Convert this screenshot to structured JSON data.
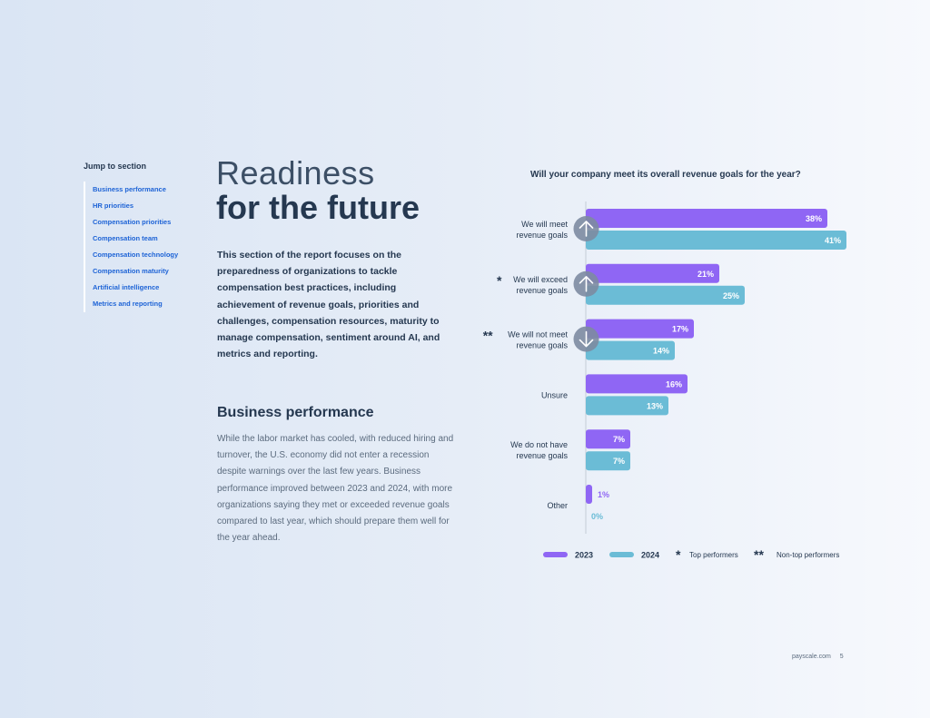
{
  "nav": {
    "title": "Jump to section",
    "items": [
      "Business performance",
      "HR priorities",
      "Compensation priorities",
      "Compensation team",
      "Compensation technology",
      "Compensation maturity",
      "Artificial intelligence",
      "Metrics and reporting"
    ]
  },
  "header": {
    "title_light": "Readiness",
    "title_bold": "for the future"
  },
  "intro": "This section of the report focuses on the preparedness of organizations to tackle compensation best practices, including achievement of revenue goals, priorities and challenges, compensation resources, maturity to manage compensation, sentiment around AI, and metrics and reporting.",
  "section": {
    "heading": "Business performance",
    "body": "While the labor market has cooled, with reduced hiring and turnover, the U.S. economy did not enter a recession despite warnings over the last few years. Business performance improved between 2023 and 2024, with more organizations saying they met or exceeded revenue goals compared to last year, which should prepare them well for the year ahead."
  },
  "chart_data": {
    "type": "bar",
    "orientation": "horizontal",
    "title": "Will your company meet its overall revenue goals for the year?",
    "categories": [
      [
        "We will meet",
        "revenue goals"
      ],
      [
        "We will exceed",
        "revenue goals"
      ],
      [
        "We will not meet",
        "revenue goals"
      ],
      [
        "Unsure"
      ],
      [
        "We do not have",
        "revenue goals"
      ],
      [
        "Other"
      ]
    ],
    "category_marks": [
      "",
      "*",
      "**",
      "",
      "",
      ""
    ],
    "trend_icons": [
      "arrow-up-icon",
      "arrow-up-icon",
      "arrow-down-icon",
      "",
      "",
      ""
    ],
    "series": [
      {
        "name": "2023",
        "color": "#8f66f4",
        "values": [
          38,
          21,
          17,
          16,
          7,
          1
        ],
        "labels": [
          "38%",
          "21%",
          "17%",
          "16%",
          "7%",
          "1%"
        ]
      },
      {
        "name": "2024",
        "color": "#6bbcd6",
        "values": [
          41,
          25,
          14,
          13,
          7,
          0
        ],
        "labels": [
          "41%",
          "25%",
          "14%",
          "13%",
          "7%",
          "0%"
        ]
      }
    ],
    "footnotes": [
      {
        "mark": "*",
        "text": "Top performers"
      },
      {
        "mark": "**",
        "text": "Non-top performers"
      }
    ],
    "legend_position": "bottom",
    "grid": false
  },
  "footer": {
    "site": "payscale.com",
    "page": "5"
  }
}
